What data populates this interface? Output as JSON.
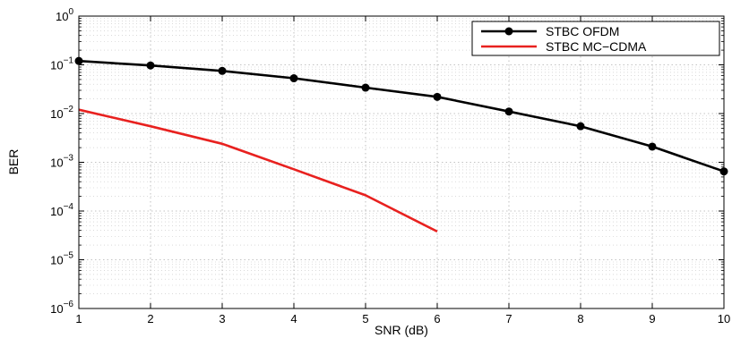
{
  "chart_data": {
    "type": "line",
    "title": "",
    "xlabel": "SNR (dB)",
    "ylabel": "BER",
    "x_scale": "linear",
    "y_scale": "log",
    "xlim": [
      1,
      10
    ],
    "ylim": [
      1e-06,
      1
    ],
    "x_ticks": [
      "1",
      "2",
      "3",
      "4",
      "5",
      "6",
      "7",
      "8",
      "9",
      "10"
    ],
    "y_ticks": [
      {
        "base": "10",
        "exp": "0"
      },
      {
        "base": "10",
        "exp": "−1"
      },
      {
        "base": "10",
        "exp": "−2"
      },
      {
        "base": "10",
        "exp": "−3"
      },
      {
        "base": "10",
        "exp": "−4"
      },
      {
        "base": "10",
        "exp": "−5"
      },
      {
        "base": "10",
        "exp": "−6"
      }
    ],
    "grid": true,
    "legend_position": "top-right",
    "series": [
      {
        "name": "STBC OFDM",
        "color": "#000000",
        "marker": "circle",
        "x": [
          1,
          2,
          3,
          4,
          5,
          6,
          7,
          8,
          9,
          10
        ],
        "values": [
          0.12,
          0.097,
          0.075,
          0.053,
          0.034,
          0.022,
          0.011,
          0.0055,
          0.0021,
          0.00065
        ]
      },
      {
        "name": "STBC MC−CDMA",
        "color": "#e8211f",
        "marker": "none",
        "x": [
          1,
          2,
          3,
          4,
          5,
          6
        ],
        "values": [
          0.012,
          0.0055,
          0.0024,
          0.00072,
          0.00021,
          3.8e-05
        ]
      }
    ]
  }
}
